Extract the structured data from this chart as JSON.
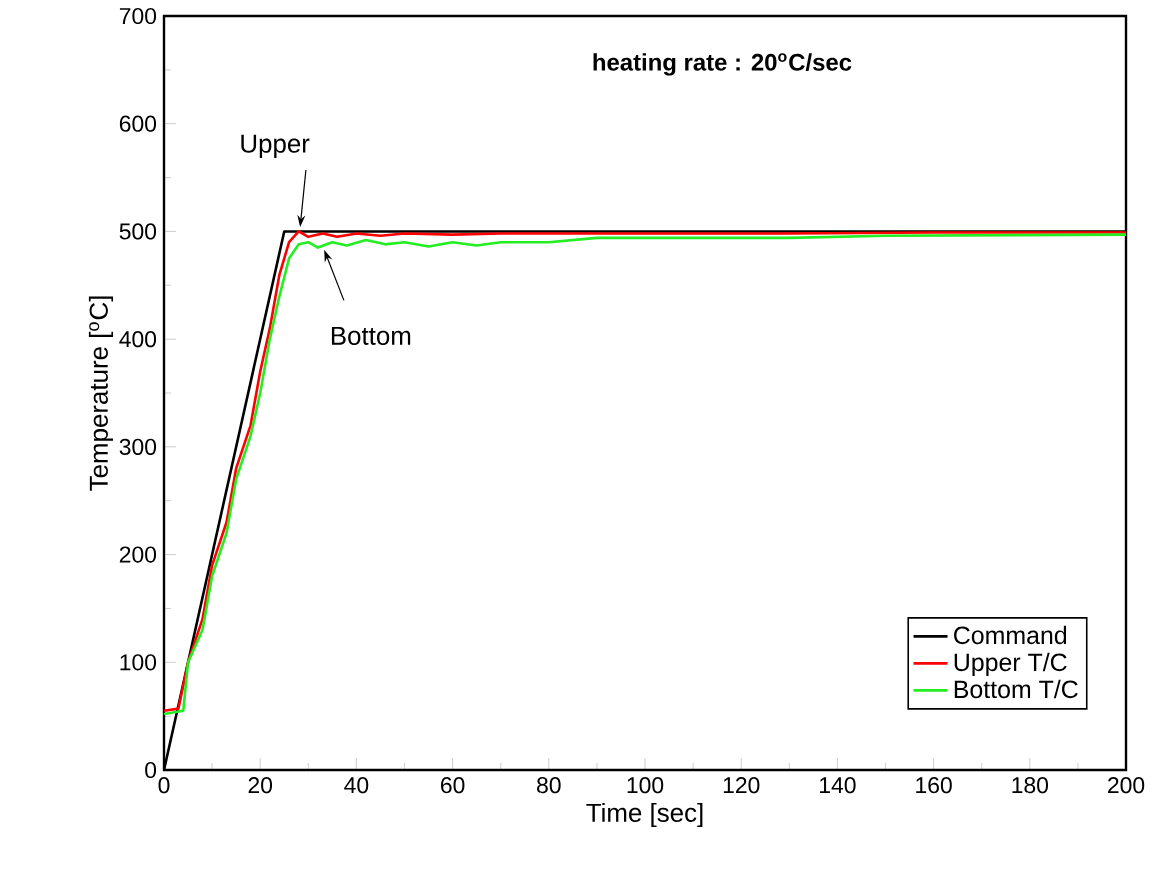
{
  "chart_data": {
    "type": "line",
    "title": "heating rate : 20$^{o}$C/sec",
    "xlabel": "Time [sec]",
    "ylabel": "Temperature [$^{o}$C]",
    "xlim": [
      0,
      200
    ],
    "ylim": [
      0,
      700
    ],
    "xticks": [
      0,
      20,
      40,
      60,
      80,
      100,
      120,
      140,
      160,
      180,
      200
    ],
    "yticks": [
      0,
      100,
      200,
      300,
      400,
      500,
      600,
      700
    ],
    "grid": false,
    "legend": "bottom right",
    "marker": "none",
    "line_style": "solid",
    "series": [
      {
        "name": "Command",
        "color": "#000000",
        "x": [
          0,
          25,
          200
        ],
        "values": [
          0,
          500,
          500
        ]
      },
      {
        "name": "Upper T/C",
        "color": "#ff0000",
        "x": [
          0,
          3,
          5,
          8,
          10,
          13,
          15,
          18,
          20,
          22,
          24,
          26,
          28,
          30,
          33,
          36,
          40,
          45,
          50,
          60,
          70,
          80,
          100,
          130,
          160,
          200
        ],
        "values": [
          55,
          57,
          100,
          140,
          190,
          230,
          280,
          320,
          370,
          410,
          460,
          490,
          500,
          495,
          498,
          495,
          498,
          496,
          498,
          497,
          498,
          498,
          498,
          498,
          499,
          499
        ]
      },
      {
        "name": "Bottom T/C",
        "color": "#22ee22",
        "x": [
          0,
          4,
          5,
          8,
          10,
          13,
          15,
          18,
          20,
          22,
          24,
          26,
          28,
          30,
          32,
          35,
          38,
          42,
          46,
          50,
          55,
          60,
          65,
          70,
          80,
          90,
          100,
          130,
          150,
          200
        ],
        "values": [
          52,
          55,
          100,
          130,
          180,
          220,
          270,
          310,
          350,
          400,
          440,
          475,
          488,
          490,
          485,
          490,
          487,
          492,
          488,
          490,
          486,
          490,
          487,
          490,
          490,
          494,
          494,
          494,
          496,
          497
        ]
      }
    ],
    "annotations": [
      {
        "text": "Upper",
        "x": 28,
        "y": 500
      },
      {
        "text": "Bottom",
        "x": 33,
        "y": 487
      }
    ]
  }
}
